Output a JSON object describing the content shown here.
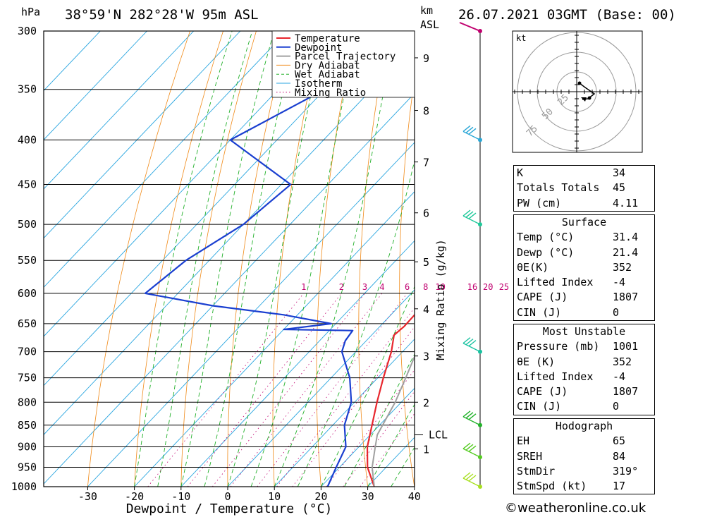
{
  "header": {
    "pressure_unit": "hPa",
    "location": "38°59'N  282°28'W  95m  ASL",
    "km_label": "km",
    "asl_label": "ASL",
    "datetime": "26.07.2021  03GMT  (Base: 00)"
  },
  "chart_data": {
    "type": "line",
    "title": "38°59'N  282°28'W  95m  ASL",
    "xlabel": "Dewpoint / Temperature (°C)",
    "ylabel": "hPa",
    "secondary_ylabel": "Mixing Ratio (g/kg)",
    "xlim": [
      -40,
      40
    ],
    "ylim": [
      1000,
      300
    ],
    "x_ticks": [
      "-30",
      "-20",
      "-10",
      "0",
      "10",
      "20",
      "30",
      "40"
    ],
    "pressure_levels": [
      300,
      350,
      400,
      450,
      500,
      550,
      600,
      650,
      700,
      750,
      800,
      850,
      900,
      950,
      1000
    ],
    "km_ticks": [
      {
        "km": "1",
        "p": 905
      },
      {
        "km": "2",
        "p": 800
      },
      {
        "km": "3",
        "p": 708
      },
      {
        "km": "4",
        "p": 625
      },
      {
        "km": "5",
        "p": 552
      },
      {
        "km": "6",
        "p": 485
      },
      {
        "km": "7",
        "p": 424
      },
      {
        "km": "8",
        "p": 370
      },
      {
        "km": "9",
        "p": 322
      }
    ],
    "lcl_label": "LCL",
    "lcl_pressure": 872,
    "mixing_ratio_labels": [
      "1",
      "2",
      "3",
      "4",
      "6",
      "8",
      "10",
      "16",
      "20",
      "25"
    ],
    "legend": [
      "Temperature",
      "Dewpoint",
      "Parcel Trajectory",
      "Dry Adiabat",
      "Wet Adiabat",
      "Isotherm",
      "Mixing Ratio"
    ],
    "series": [
      {
        "name": "Temperature",
        "color": "#e8262d",
        "points": [
          {
            "p": 1000,
            "t": 31.4
          },
          {
            "p": 950,
            "t": 26.0
          },
          {
            "p": 900,
            "t": 21.8
          },
          {
            "p": 850,
            "t": 18.4
          },
          {
            "p": 800,
            "t": 14.8
          },
          {
            "p": 750,
            "t": 11.2
          },
          {
            "p": 700,
            "t": 7.6
          },
          {
            "p": 670,
            "t": 4.8
          },
          {
            "p": 655,
            "t": 5.2
          },
          {
            "p": 620,
            "t": 5.0
          },
          {
            "p": 600,
            "t": 3.0
          },
          {
            "p": 550,
            "t": -3.0
          },
          {
            "p": 500,
            "t": -9.5
          },
          {
            "p": 450,
            "t": -17.0
          },
          {
            "p": 400,
            "t": -23.0
          },
          {
            "p": 350,
            "t": -32.0
          },
          {
            "p": 300,
            "t": -43.0
          }
        ]
      },
      {
        "name": "Dewpoint",
        "color": "#1a3fd0",
        "points": [
          {
            "p": 1000,
            "t": 21.4
          },
          {
            "p": 950,
            "t": 19.3
          },
          {
            "p": 900,
            "t": 17.2
          },
          {
            "p": 850,
            "t": 12.5
          },
          {
            "p": 800,
            "t": 9.3
          },
          {
            "p": 750,
            "t": 4.0
          },
          {
            "p": 700,
            "t": -3.0
          },
          {
            "p": 680,
            "t": -4.5
          },
          {
            "p": 662,
            "t": -5.0
          },
          {
            "p": 660,
            "t": -20.0
          },
          {
            "p": 650,
            "t": -11.0
          },
          {
            "p": 635,
            "t": -23.0
          },
          {
            "p": 620,
            "t": -40.0
          },
          {
            "p": 600,
            "t": -57.0
          },
          {
            "p": 550,
            "t": -55.0
          },
          {
            "p": 500,
            "t": -50.0
          },
          {
            "p": 450,
            "t": -48.0
          },
          {
            "p": 400,
            "t": -70.0
          },
          {
            "p": 350,
            "t": -60.0
          },
          {
            "p": 320,
            "t": -70.0
          },
          {
            "p": 312,
            "t": -42.0
          },
          {
            "p": 300,
            "t": -43.0
          }
        ]
      },
      {
        "name": "Parcel Trajectory",
        "color": "#a0a0a0",
        "points": [
          {
            "p": 1000,
            "t": 31.4
          },
          {
            "p": 950,
            "t": 27.0
          },
          {
            "p": 900,
            "t": 23.5
          },
          {
            "p": 872,
            "t": 21.5
          },
          {
            "p": 800,
            "t": 18.7
          },
          {
            "p": 750,
            "t": 16.0
          },
          {
            "p": 700,
            "t": 13.0
          },
          {
            "p": 650,
            "t": 9.5
          },
          {
            "p": 600,
            "t": 5.4
          },
          {
            "p": 550,
            "t": 1.0
          },
          {
            "p": 500,
            "t": -4.5
          },
          {
            "p": 450,
            "t": -11.0
          },
          {
            "p": 400,
            "t": -18.5
          },
          {
            "p": 370,
            "t": -24.0
          }
        ]
      }
    ],
    "wind_barbs": [
      {
        "p": 300,
        "color": "#c0006f"
      },
      {
        "p": 400,
        "color": "#2aa7d6"
      },
      {
        "p": 500,
        "color": "#1fc99a"
      },
      {
        "p": 700,
        "color": "#18c2a0"
      },
      {
        "p": 850,
        "color": "#22b22a"
      },
      {
        "p": 925,
        "color": "#55cc22"
      },
      {
        "p": 1000,
        "color": "#a8e020"
      }
    ]
  },
  "hodograph": {
    "unit_label": "kt",
    "ring_labels": [
      "25",
      "50",
      "75"
    ]
  },
  "indices": [
    {
      "label": "K",
      "value": "34"
    },
    {
      "label": "Totals Totals",
      "value": "45"
    },
    {
      "label": "PW (cm)",
      "value": "4.11"
    }
  ],
  "surface": {
    "title": "Surface",
    "rows": [
      {
        "label": "Temp (°C)",
        "value": "31.4"
      },
      {
        "label": "Dewp (°C)",
        "value": "21.4"
      },
      {
        "label": "θE(K)",
        "value": "352"
      },
      {
        "label": "Lifted Index",
        "value": "-4"
      },
      {
        "label": "CAPE (J)",
        "value": "1807"
      },
      {
        "label": "CIN (J)",
        "value": "0"
      }
    ]
  },
  "most_unstable": {
    "title": "Most Unstable",
    "rows": [
      {
        "label": "Pressure (mb)",
        "value": "1001"
      },
      {
        "label": "θE (K)",
        "value": "352"
      },
      {
        "label": "Lifted Index",
        "value": "-4"
      },
      {
        "label": "CAPE (J)",
        "value": "1807"
      },
      {
        "label": "CIN (J)",
        "value": "0"
      }
    ]
  },
  "hodograph_table": {
    "title": "Hodograph",
    "rows": [
      {
        "label": "EH",
        "value": "65"
      },
      {
        "label": "SREH",
        "value": "84"
      },
      {
        "label": "StmDir",
        "value": "319°"
      },
      {
        "label": "StmSpd (kt)",
        "value": "17"
      }
    ]
  },
  "footer": {
    "copyright": "©weatheronline.co.uk"
  }
}
